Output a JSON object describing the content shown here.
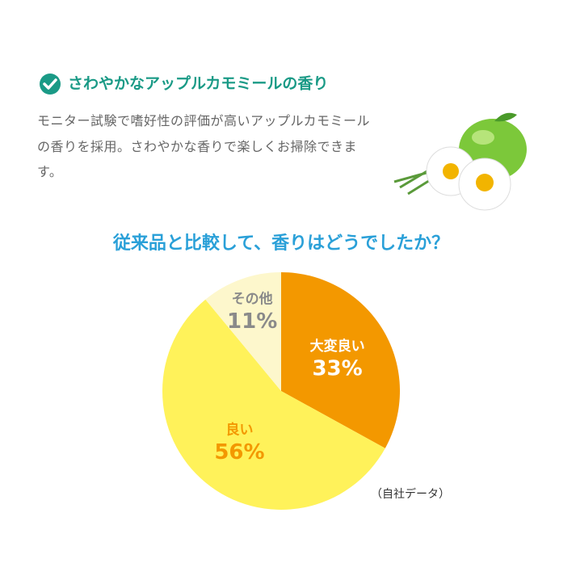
{
  "heading": "さわやかなアップルカモミールの香り",
  "description": "モニター試験で嗜好性の評価が高いアップルカモミールの香りを採用。さわやかな香りで楽しくお掃除できます。",
  "chart_data": {
    "type": "pie",
    "title": "従来品と比較して、香りはどうでしたか？",
    "categories": [
      "大変良い",
      "良い",
      "その他"
    ],
    "values": [
      33,
      56,
      11
    ],
    "value_labels": [
      "33%",
      "56%",
      "11%"
    ],
    "colors": [
      "#f39800",
      "#fff25a",
      "#fdf7cc"
    ],
    "label_colors": [
      "#ffffff",
      "#f39800",
      "#8a8a8a"
    ],
    "annotation": "（自社データ）"
  }
}
